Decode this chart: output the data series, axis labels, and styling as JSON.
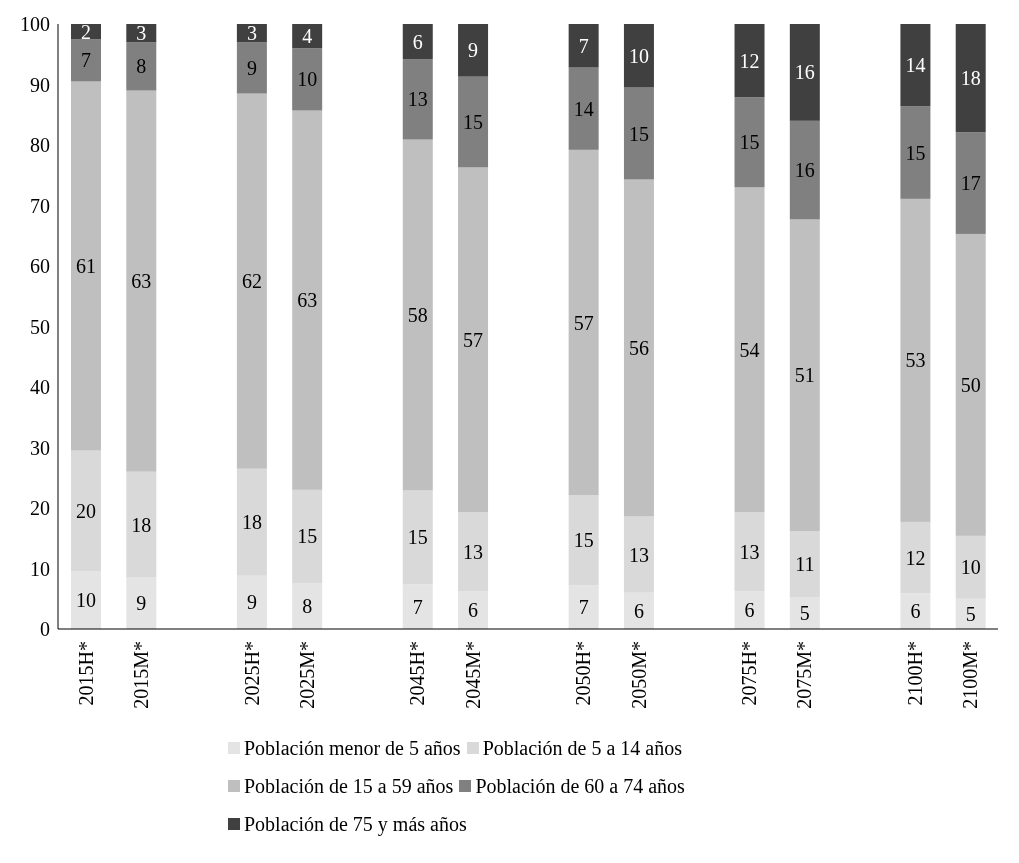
{
  "chart_data": {
    "type": "bar",
    "stacked": true,
    "categories": [
      "2015H*",
      "2015M*",
      null,
      "2025H*",
      "2025M*",
      null,
      "2045H*",
      "2045M*",
      null,
      "2050H*",
      "2050M*",
      null,
      "2075H*",
      "2075M*",
      null,
      "2100H*",
      "2100M*"
    ],
    "series": [
      {
        "name": "Población menor de 5 años",
        "color": "#e4e4e4",
        "values": [
          9.5,
          8.5,
          null,
          8.8,
          7.6,
          null,
          7.4,
          6.2,
          null,
          7.2,
          6,
          null,
          6.2,
          5.2,
          null,
          5.9,
          5
        ],
        "value_labels": [
          "10",
          "9",
          null,
          "9",
          "8",
          null,
          "7",
          "6",
          null,
          "7",
          "6",
          null,
          "6",
          "5",
          null,
          "6",
          "5"
        ]
      },
      {
        "name": "Población de 5 a 14 años",
        "color": "#d9d9d9",
        "values": [
          20,
          17.5,
          null,
          17.7,
          15.4,
          null,
          15.5,
          13.1,
          null,
          14.9,
          12.6,
          null,
          13.1,
          11,
          null,
          11.8,
          10.4
        ],
        "value_labels": [
          "20",
          "18",
          null,
          "18",
          "15",
          null,
          "15",
          "13",
          null,
          "15",
          "13",
          null,
          "13",
          "11",
          null,
          "12",
          "10"
        ]
      },
      {
        "name": "Población de 15 a 59 años",
        "color": "#bfbfbf",
        "values": [
          61,
          63,
          null,
          62,
          62.7,
          null,
          58,
          57,
          null,
          57.1,
          55.7,
          null,
          53.7,
          51.5,
          null,
          53.4,
          49.9
        ],
        "value_labels": [
          "61",
          "63",
          null,
          "62",
          "63",
          null,
          "58",
          "57",
          null,
          "57",
          "56",
          null,
          "54",
          "51",
          null,
          "53",
          "50"
        ]
      },
      {
        "name": "Población de 60 a 74 años",
        "color": "#808080",
        "values": [
          7,
          8,
          null,
          8.5,
          10.3,
          null,
          13.3,
          15,
          null,
          13.6,
          15.2,
          null,
          14.9,
          16.3,
          null,
          15.3,
          16.8
        ],
        "value_labels": [
          "7",
          "8",
          null,
          "9",
          "10",
          null,
          "13",
          "15",
          null,
          "14",
          "15",
          null,
          "15",
          "16",
          null,
          "15",
          "17"
        ]
      },
      {
        "name": "Población de 75 y más años",
        "color": "#404040",
        "values": [
          2.5,
          3,
          null,
          3,
          4,
          null,
          5.8,
          8.7,
          null,
          7.2,
          10.5,
          null,
          12.1,
          16,
          null,
          13.6,
          17.9
        ],
        "value_labels": [
          "2",
          "3",
          null,
          "3",
          "4",
          null,
          "6",
          "9",
          null,
          "7",
          "10",
          null,
          "12",
          "16",
          null,
          "14",
          "18"
        ]
      }
    ],
    "ylim": [
      0,
      100
    ],
    "yticks": [
      0,
      10,
      20,
      30,
      40,
      50,
      60,
      70,
      80,
      90,
      100
    ],
    "grid": false,
    "legend": "bottom"
  }
}
